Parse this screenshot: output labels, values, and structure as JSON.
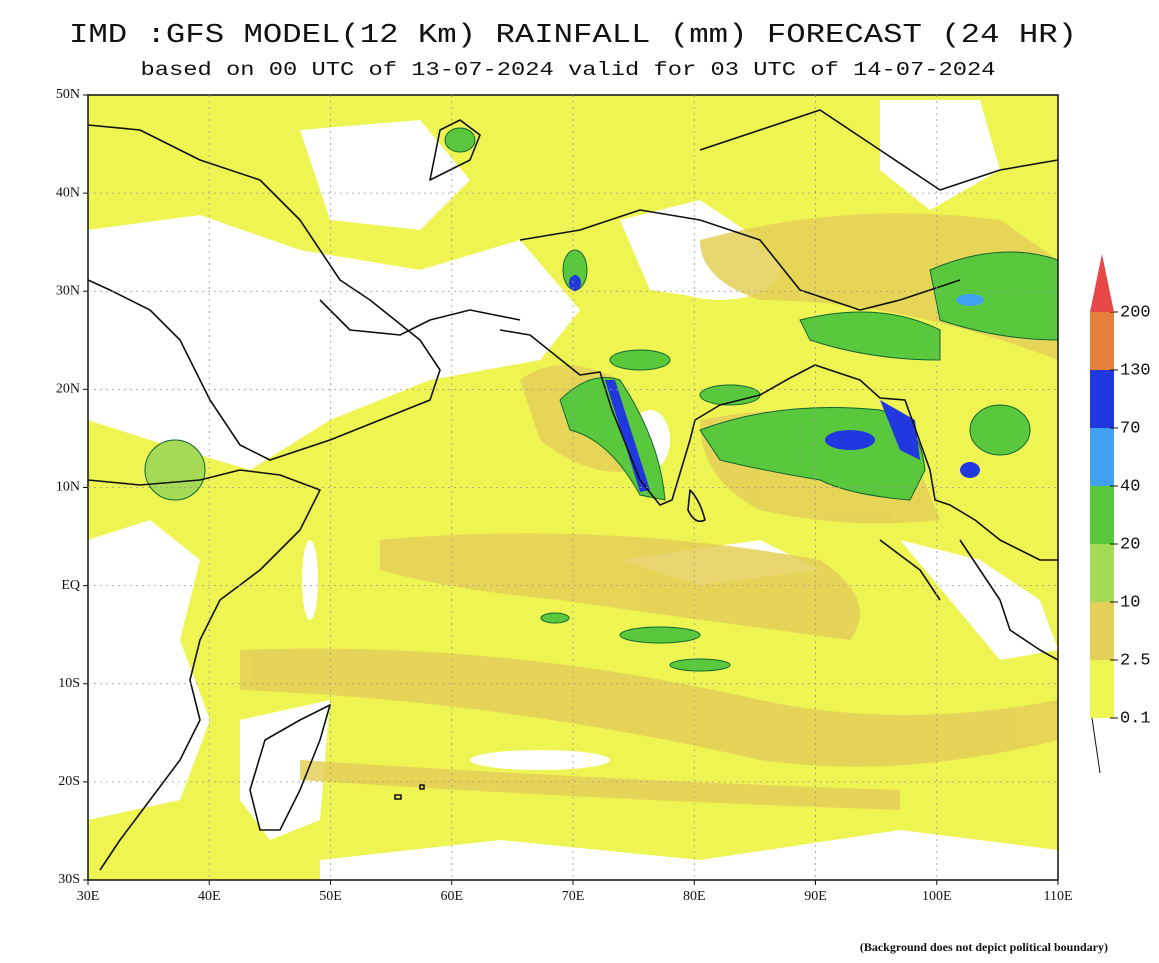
{
  "header": {
    "title": "IMD :GFS MODEL(12 Km) RAINFALL (mm) FORECAST (24 HR)",
    "subtitle": "based on 00 UTC of 13-07-2024 valid for 03 UTC of 14-07-2024"
  },
  "map": {
    "lat_labels": [
      "50N",
      "40N",
      "30N",
      "20N",
      "10N",
      "EQ",
      "10S",
      "20S",
      "30S"
    ],
    "lon_labels": [
      "30E",
      "40E",
      "50E",
      "60E",
      "70E",
      "80E",
      "90E",
      "100E",
      "110E"
    ]
  },
  "legend": {
    "labels": [
      "0.1",
      "2.5",
      "10",
      "20",
      "40",
      "70",
      "130",
      "200"
    ],
    "colors": [
      "#eef552",
      "#e4cf58",
      "#a4da56",
      "#5ac83c",
      "#42a0f0",
      "#2238df",
      "#e6803c",
      "#e64848"
    ]
  },
  "footnote": "(Background does not depict political boundary)"
}
